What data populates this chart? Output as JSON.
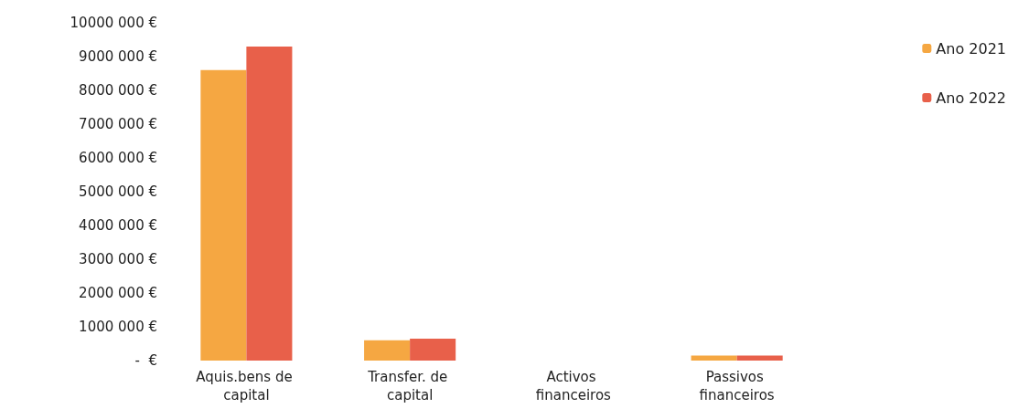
{
  "chart_data": {
    "type": "bar",
    "categories": [
      "Aquis.bens de capital",
      "Transfer. de capital",
      "Activos financeiros",
      "Passivos financeiros"
    ],
    "series": [
      {
        "name": "Ano 2021",
        "color": "#f5a742",
        "values": [
          8600000,
          600000,
          0,
          150000
        ]
      },
      {
        "name": "Ano 2022",
        "color": "#e8604a",
        "values": [
          9300000,
          650000,
          0,
          150000
        ]
      }
    ],
    "ylim": [
      0,
      10000000
    ],
    "yticks": [
      {
        "value": 0,
        "label": "-  €"
      },
      {
        "value": 1000000,
        "label": "1000 000 €"
      },
      {
        "value": 2000000,
        "label": "2000 000 €"
      },
      {
        "value": 3000000,
        "label": "3000 000 €"
      },
      {
        "value": 4000000,
        "label": "4000 000 €"
      },
      {
        "value": 5000000,
        "label": "5000 000 €"
      },
      {
        "value": 6000000,
        "label": "6000 000 €"
      },
      {
        "value": 7000000,
        "label": "7000 000 €"
      },
      {
        "value": 8000000,
        "label": "8000 000 €"
      },
      {
        "value": 9000000,
        "label": "9000 000 €"
      },
      {
        "value": 10000000,
        "label": "10000 000 €"
      }
    ],
    "grid": false,
    "legend": "right"
  }
}
